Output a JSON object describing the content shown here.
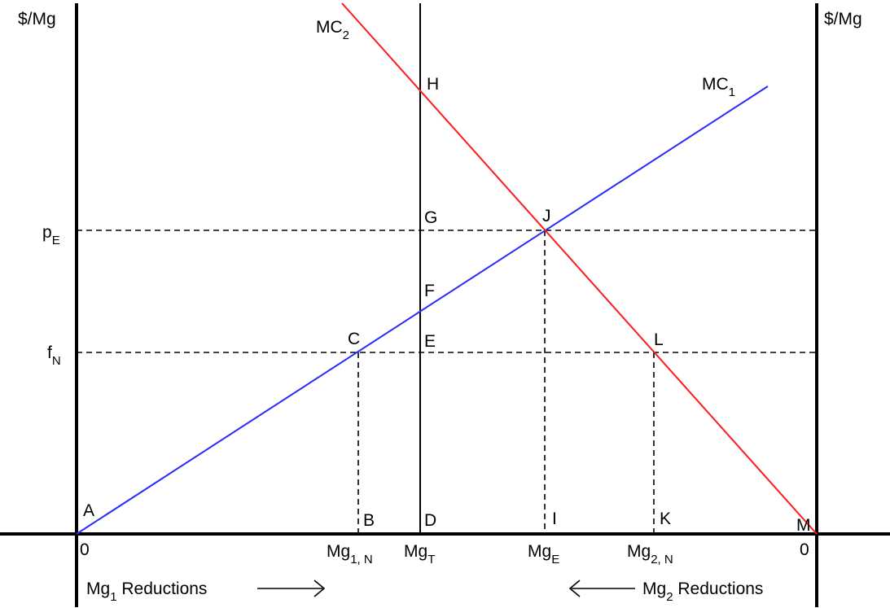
{
  "axes": {
    "left_unit": "$/Mg",
    "right_unit": "$/Mg",
    "left_origin": "0",
    "right_origin": "0"
  },
  "price_labels": {
    "pE": {
      "main": "p",
      "sub": "E"
    },
    "fN": {
      "main": "f",
      "sub": "N"
    }
  },
  "curves": {
    "mc1": {
      "main": "MC",
      "sub": "1",
      "color": "#2a2aff"
    },
    "mc2": {
      "main": "MC",
      "sub": "2",
      "color": "#ff1a1a"
    }
  },
  "points": {
    "A": "A",
    "B": "B",
    "C": "C",
    "D": "D",
    "E": "E",
    "F": "F",
    "G": "G",
    "H": "H",
    "I": "I",
    "J": "J",
    "K": "K",
    "L": "L",
    "M": "M"
  },
  "quantity_labels": {
    "mg1n": {
      "main": "Mg",
      "sub": "1, N"
    },
    "mgT": {
      "main": "Mg",
      "sub": "T"
    },
    "mgE": {
      "main": "Mg",
      "sub": "E"
    },
    "mg2n": {
      "main": "Mg",
      "sub": "2, N"
    }
  },
  "reductions": {
    "mg1": {
      "main": "Mg",
      "sub": "1",
      "rest": " Reductions"
    },
    "mg2": {
      "main": "Mg",
      "sub": "2",
      "rest": " Reductions"
    }
  }
}
